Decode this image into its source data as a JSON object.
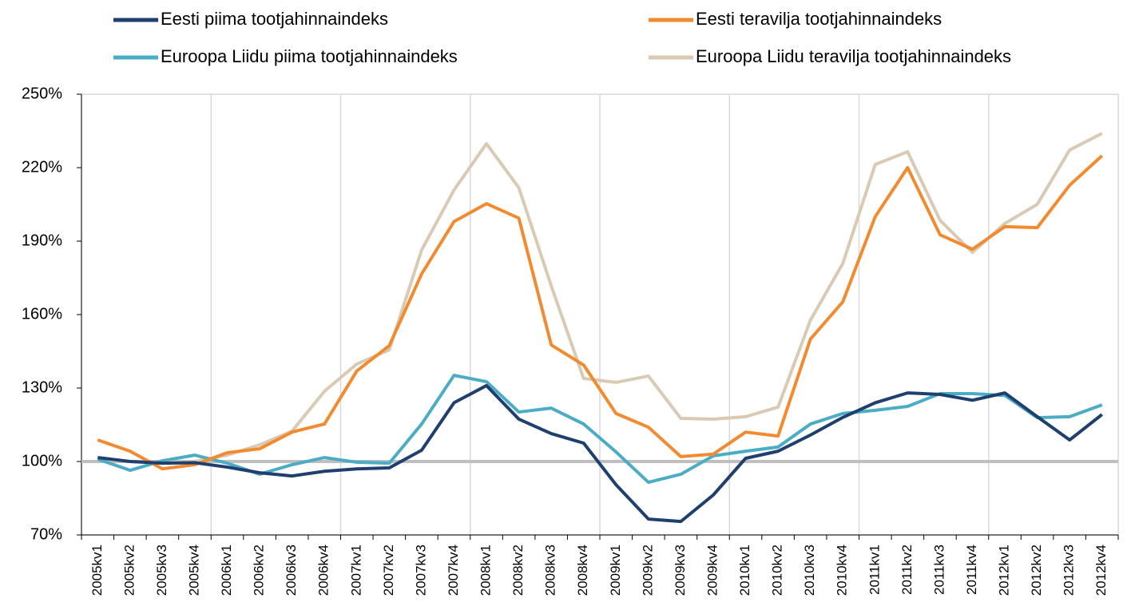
{
  "chart_data": {
    "type": "line",
    "categories": [
      "2005kv1",
      "2005kv2",
      "2005kv3",
      "2005kv4",
      "2006kv1",
      "2006kv2",
      "2006kv3",
      "2006kv4",
      "2007kv1",
      "2007kv2",
      "2007kv3",
      "2007kv4",
      "2008kv1",
      "2008kv2",
      "2008kv3",
      "2008kv4",
      "2009kv1",
      "2009kv2",
      "2009kv3",
      "2009kv4",
      "2010kv1",
      "2010kv2",
      "2010kv3",
      "2010kv4",
      "2011kv1",
      "2011kv2",
      "2011kv3",
      "2011kv4",
      "2012kv1",
      "2012kv2",
      "2012kv3",
      "2012kv4"
    ],
    "series": [
      {
        "name": "Eesti piima tootjahinnaindeks",
        "color": "#1f3f6e",
        "values": [
          101.6,
          100,
          99.3,
          99.5,
          97.7,
          95.4,
          94.1,
          96,
          97,
          97.4,
          104.6,
          124,
          131,
          117.3,
          111.4,
          107.5,
          90.5,
          76.5,
          75.5,
          86.3,
          101.3,
          104.2,
          110.8,
          118,
          124,
          128,
          127.4,
          125,
          128,
          118.3,
          108.8,
          119.2
        ]
      },
      {
        "name": "Eesti teravilja tootjahinnaindeks",
        "color": "#f28b30",
        "values": [
          108.8,
          104.2,
          97,
          98.7,
          103.6,
          105.2,
          112,
          115.3,
          137,
          147.3,
          176.6,
          198,
          205.3,
          199.4,
          147.6,
          139.4,
          119.6,
          114,
          102,
          103,
          112,
          110.4,
          150,
          165.2,
          200,
          220,
          192.6,
          186.7,
          195.9,
          195.5,
          212.8,
          224.9
        ]
      },
      {
        "name": "Euroopa Liidu piima tootjahinnaindeks",
        "color": "#4bacc6",
        "values": [
          101,
          96.4,
          100.3,
          102.6,
          99.3,
          94.8,
          98.7,
          101.6,
          99.7,
          99.3,
          115.3,
          135.2,
          132.6,
          120.2,
          121.8,
          115.3,
          103.9,
          91.5,
          94.8,
          102.3,
          104.2,
          105.9,
          115.3,
          119.6,
          120.9,
          122.5,
          127.7,
          127.7,
          127,
          117.9,
          118.3,
          123.1
        ]
      },
      {
        "name": "Euroopa Liidu teravilja tootjahinnaindeks",
        "color": "#d9cab3",
        "values": [
          101,
          100,
          99.3,
          100,
          102.6,
          106.8,
          112.4,
          128.7,
          139.8,
          145.6,
          186.4,
          210.9,
          229.8,
          211.8,
          171.7,
          133.9,
          132.3,
          134.9,
          117.6,
          117.3,
          118.3,
          122.2,
          157.7,
          180.9,
          221.3,
          226.5,
          198.5,
          185.4,
          197.2,
          205,
          227.2,
          234
        ]
      }
    ],
    "ylim": [
      70,
      250
    ],
    "yticks": [
      {
        "value": 70,
        "label": "70%"
      },
      {
        "value": 100,
        "label": "100%"
      },
      {
        "value": 130,
        "label": "130%"
      },
      {
        "value": 160,
        "label": "160%"
      },
      {
        "value": 190,
        "label": "190%"
      },
      {
        "value": 220,
        "label": "220%"
      },
      {
        "value": 250,
        "label": "250%"
      }
    ],
    "reference_line": 100,
    "reference_color": "#bfbfbf"
  }
}
